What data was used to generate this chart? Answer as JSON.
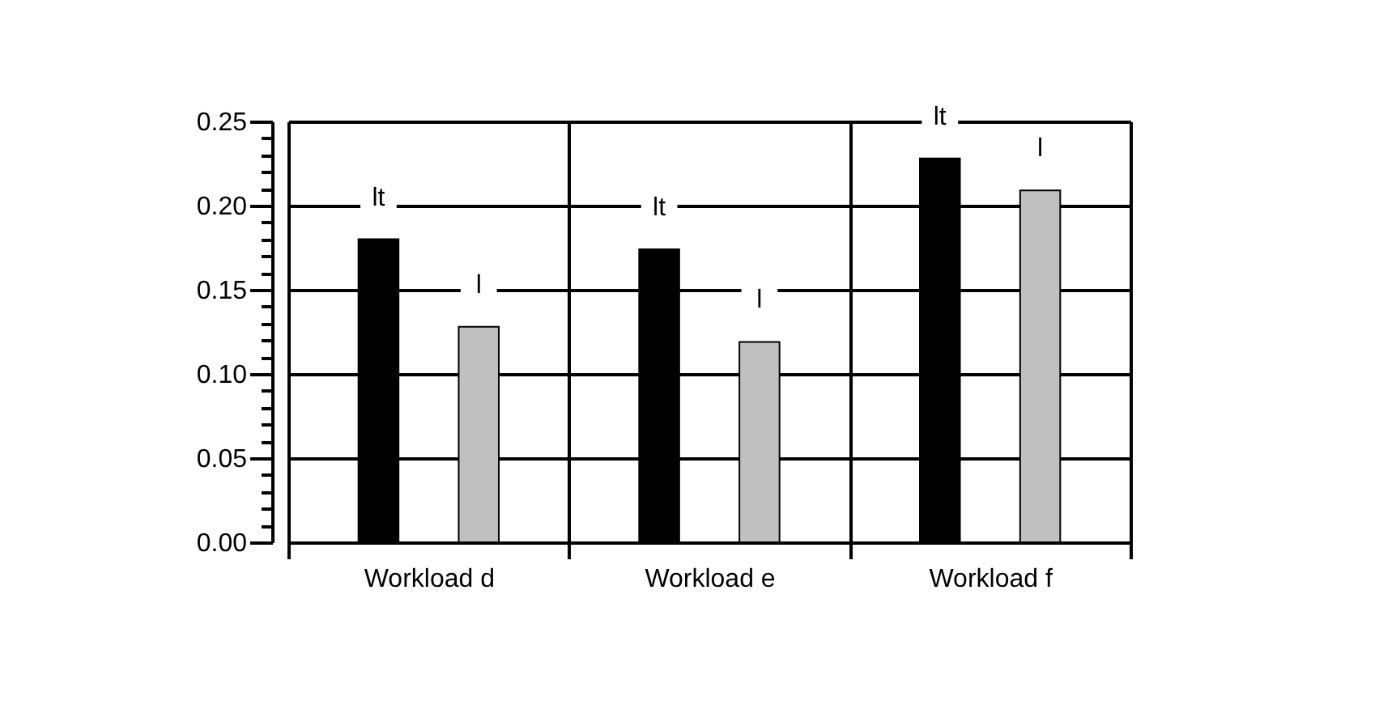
{
  "chart_data": {
    "type": "bar",
    "categories": [
      "Workload d",
      "Workload e",
      "Workload f"
    ],
    "series": [
      {
        "name": "lt",
        "color": "#000000",
        "values": [
          0.18,
          0.174,
          0.228
        ]
      },
      {
        "name": "l",
        "color": "#c0c0c0",
        "values": [
          0.128,
          0.119,
          0.209
        ]
      }
    ],
    "ylim": [
      0,
      0.25
    ],
    "yticks": [
      {
        "value": 0,
        "label": "0.00"
      },
      {
        "value": 0.01,
        "label": null
      },
      {
        "value": 0.02,
        "label": null
      },
      {
        "value": 0.03,
        "label": null
      },
      {
        "value": 0.04,
        "label": null
      },
      {
        "value": 0.05,
        "label": "0.05"
      },
      {
        "value": 0.06,
        "label": null
      },
      {
        "value": 0.07,
        "label": null
      },
      {
        "value": 0.08,
        "label": null
      },
      {
        "value": 0.09,
        "label": null
      },
      {
        "value": 0.1,
        "label": "0.10"
      },
      {
        "value": 0.11,
        "label": null
      },
      {
        "value": 0.12,
        "label": null
      },
      {
        "value": 0.13,
        "label": null
      },
      {
        "value": 0.14,
        "label": null
      },
      {
        "value": 0.15,
        "label": "0.15"
      },
      {
        "value": 0.16,
        "label": null
      },
      {
        "value": 0.17,
        "label": null
      },
      {
        "value": 0.18,
        "label": null
      },
      {
        "value": 0.19,
        "label": null
      },
      {
        "value": 0.2,
        "label": "0.20"
      },
      {
        "value": 0.21,
        "label": null
      },
      {
        "value": 0.22,
        "label": null
      },
      {
        "value": 0.23,
        "label": null
      },
      {
        "value": 0.24,
        "label": null
      },
      {
        "value": 0.25,
        "label": "0.25"
      }
    ],
    "grid": true,
    "legend": false
  }
}
